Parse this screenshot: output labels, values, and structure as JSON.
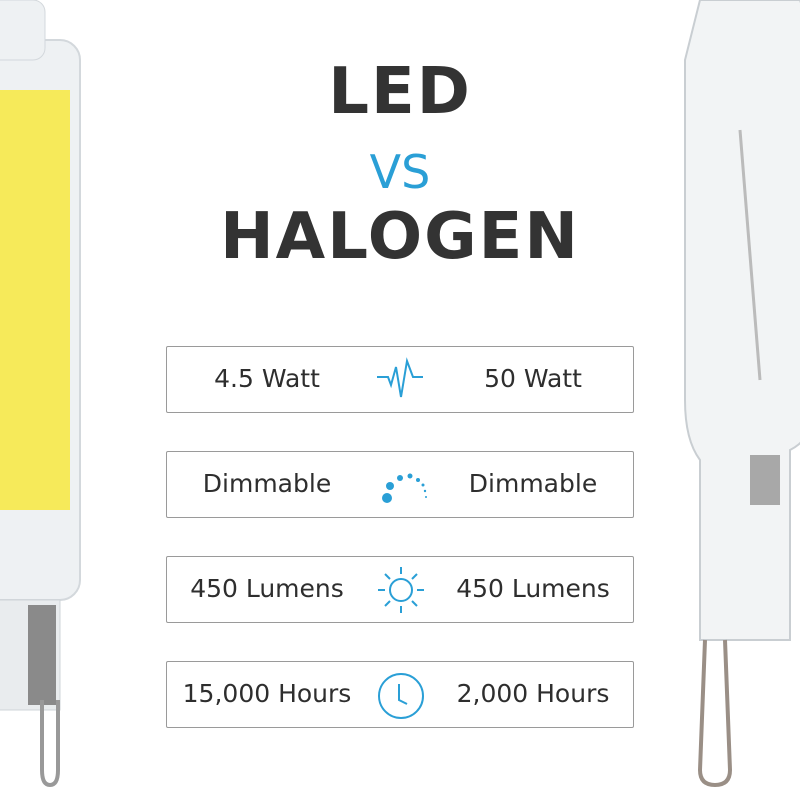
{
  "heading": {
    "led": "LED",
    "vs": "VS",
    "halogen": "HALOGEN"
  },
  "accent_color": "#2a9fd6",
  "rows": [
    {
      "led": "4.5 Watt",
      "icon": "waveform-icon",
      "halogen": "50 Watt"
    },
    {
      "led": "Dimmable",
      "icon": "dimmer-dots-icon",
      "halogen": "Dimmable"
    },
    {
      "led": "450 Lumens",
      "icon": "sun-icon",
      "halogen": "450 Lumens"
    },
    {
      "led": "15,000 Hours",
      "icon": "clock-icon",
      "halogen": "2,000 Hours"
    }
  ]
}
